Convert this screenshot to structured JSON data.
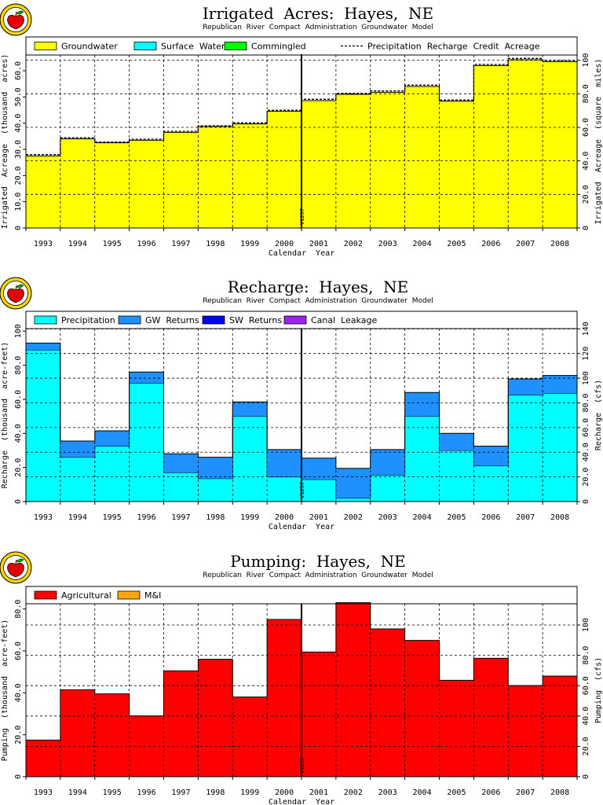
{
  "chart_data": [
    {
      "id": "irrigated",
      "type": "area",
      "title": "Irrigated  Acres:  Hayes,  NE",
      "subtitle": "Republican  River  Compact  Administration  Groundwater  Model",
      "xlabel": "Calendar  Year",
      "ylabel": "Irrigated  Acreage  (thousand  acres)",
      "y2label": "Irrigated  Acreage  (square  miles)",
      "categories": [
        "1993",
        "1994",
        "1995",
        "1996",
        "1997",
        "1998",
        "1999",
        "2000",
        "2001",
        "2002",
        "2003",
        "2004",
        "2005",
        "2006",
        "2007",
        "2008"
      ],
      "ylim": [
        0,
        66.0
      ],
      "yticks": [
        0,
        10.0,
        20.0,
        30.0,
        40.0,
        50.0,
        60.0
      ],
      "ytick_labels": [
        "0",
        "10.0",
        "20.0",
        "30.0",
        "40.0",
        "50.0",
        "60.0"
      ],
      "y2lim": [
        0,
        103.1
      ],
      "y2ticks": [
        0,
        20.0,
        40.0,
        60.0,
        80.0,
        100
      ],
      "y2tick_labels": [
        "0",
        "20.0",
        "40.0",
        "60.0",
        "80.0",
        "100"
      ],
      "legend_position": "top",
      "marker_label": "V1297",
      "marker_after": "2000",
      "series": [
        {
          "name": "Groundwater",
          "color": "#ffff00",
          "values": [
            27.5,
            34.0,
            32.5,
            33.5,
            36.5,
            38.7,
            39.7,
            44.5,
            48.6,
            51.0,
            51.8,
            54.0,
            48.4,
            62.0,
            64.2,
            63.5
          ]
        },
        {
          "name": "Surface  Water",
          "color": "#00ffff",
          "values": [
            0,
            0,
            0,
            0,
            0,
            0,
            0,
            0,
            0,
            0,
            0,
            0,
            0,
            0,
            0,
            0
          ]
        },
        {
          "name": "Commingled",
          "color": "#00ff00",
          "values": [
            0,
            0,
            0,
            0,
            0,
            0,
            0,
            0,
            0,
            0,
            0,
            0,
            0,
            0,
            0,
            0
          ]
        },
        {
          "name": "Precipitation  Recharge  Credit  Acreage",
          "color": "#000000",
          "style": "dashed",
          "values": [
            28.0,
            34.4,
            32.8,
            33.9,
            36.9,
            39.0,
            40.1,
            44.9,
            49.1,
            51.4,
            52.3,
            54.5,
            48.8,
            62.4,
            64.7,
            63.9
          ]
        }
      ]
    },
    {
      "id": "recharge",
      "type": "area",
      "title": "Recharge:  Hayes,  NE",
      "subtitle": "Republican  River  Compact  Administration  Groundwater  Model",
      "xlabel": "Calendar  Year",
      "ylabel": "Recharge  (thousand  acre-feet)",
      "y2label": "Recharge  (cfs)",
      "categories": [
        "1993",
        "1994",
        "1995",
        "1996",
        "1997",
        "1998",
        "1999",
        "2000",
        "2001",
        "2002",
        "2003",
        "2004",
        "2005",
        "2006",
        "2007",
        "2008"
      ],
      "ylim": [
        0,
        101.5
      ],
      "yticks": [
        0,
        20.0,
        40.0,
        60.0,
        80.0,
        100
      ],
      "ytick_labels": [
        "0",
        "20.0",
        "40.0",
        "60.0",
        "80.0",
        "100"
      ],
      "y2lim": [
        0,
        140.2
      ],
      "y2ticks": [
        0,
        20.0,
        40.0,
        60.0,
        80.0,
        100,
        120,
        140
      ],
      "y2tick_labels": [
        "0",
        "20.0",
        "40.0",
        "60.0",
        "80.0",
        "100",
        "120",
        "140"
      ],
      "legend_position": "top",
      "marker_label": "V1297",
      "marker_after": "2000",
      "series": [
        {
          "name": "Precipitation",
          "color": "#00ffff",
          "values": [
            89.0,
            26.0,
            32.5,
            69.5,
            17.0,
            13.5,
            50.0,
            14.5,
            13.0,
            2.0,
            15.5,
            50.0,
            30.0,
            21.0,
            62.5,
            63.5
          ]
        },
        {
          "name": "GW  Returns",
          "color": "#1e90ff",
          "values": [
            4.0,
            9.5,
            9.0,
            6.5,
            11.0,
            12.5,
            8.5,
            16.0,
            12.5,
            17.5,
            15.0,
            14.0,
            10.0,
            11.5,
            9.5,
            10.5
          ]
        },
        {
          "name": "SW  Returns",
          "color": "#0000ff",
          "values": [
            0,
            0,
            0,
            0,
            0,
            0,
            0,
            0,
            0,
            0,
            0,
            0,
            0,
            0,
            0,
            0
          ]
        },
        {
          "name": "Canal  Leakage",
          "color": "#a020f0",
          "values": [
            0,
            0,
            0,
            0,
            0,
            0,
            0,
            0,
            0,
            0,
            0,
            0,
            0,
            0,
            0,
            0
          ]
        }
      ]
    },
    {
      "id": "pumping",
      "type": "area",
      "title": "Pumping:  Hayes,  NE",
      "subtitle": "Republican  River  Compact  Administration  Groundwater  Model",
      "xlabel": "Calendar  Year",
      "ylabel": "Pumping  (thousand  acre-feet)",
      "y2label": "Pumping  (cfs)",
      "categories": [
        "1993",
        "1994",
        "1995",
        "1996",
        "1997",
        "1998",
        "1999",
        "2000",
        "2001",
        "2002",
        "2003",
        "2004",
        "2005",
        "2006",
        "2007",
        "2008"
      ],
      "ylim": [
        0,
        82.5
      ],
      "yticks": [
        0,
        20.0,
        40.0,
        60.0,
        80.0
      ],
      "ytick_labels": [
        "0",
        "20.0",
        "40.0",
        "60.0",
        "80.0"
      ],
      "y2lim": [
        0,
        114.0
      ],
      "y2ticks": [
        0,
        20.0,
        40.0,
        60.0,
        80.0,
        100
      ],
      "y2tick_labels": [
        "0",
        "20.0",
        "40.0",
        "60.0",
        "80.0",
        "100"
      ],
      "legend_position": "top",
      "marker_label": "V1297",
      "marker_after": "2000",
      "series": [
        {
          "name": "Agricultural",
          "color": "#ff0000",
          "values": [
            17.5,
            41.5,
            39.5,
            29.0,
            50.5,
            56.0,
            38.0,
            75.0,
            59.5,
            83.0,
            70.5,
            65.0,
            46.0,
            56.5,
            43.5,
            48.0
          ]
        },
        {
          "name": "M&I",
          "color": "#ffa500",
          "values": [
            0,
            0,
            0,
            0,
            0,
            0,
            0,
            0,
            0,
            0,
            0,
            0,
            0,
            0,
            0,
            0
          ]
        }
      ]
    }
  ]
}
